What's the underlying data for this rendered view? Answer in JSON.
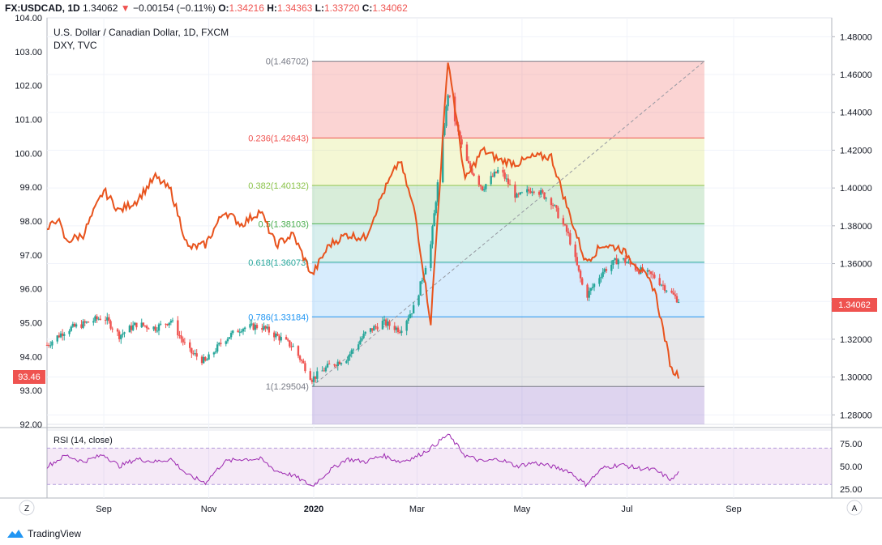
{
  "header": {
    "symbol": "FX:USDCAD, 1D",
    "last": "1.34062",
    "arrow": "▼",
    "change": "−0.00154 (−0.11%)",
    "o_label": "O:",
    "o": "1.34216",
    "h_label": "H:",
    "h": "1.34363",
    "l_label": "L:",
    "l": "1.33720",
    "c_label": "C:",
    "c": "1.34062"
  },
  "legend": {
    "main": "U.S. Dollar / Canadian Dollar, 1D, FXCM",
    "overlay": "DXY, TVC"
  },
  "price_badge": "1.34062",
  "dxy_badge": "93.46",
  "rsi_label": "RSI (14, close)",
  "axis_buttons": {
    "left": "Z",
    "right": "A"
  },
  "branding": "TradingView",
  "colors": {
    "candle_up": "#26a69a",
    "candle_down": "#ef5350",
    "dxy_line": "#e8531d",
    "rsi_line": "#9c27b0",
    "badge": "#ef5350"
  },
  "chart_data": [
    {
      "type": "candlestick",
      "name": "USDCAD",
      "y_axis": "right",
      "ylim": [
        1.275,
        1.49
      ],
      "y_ticks": [
        "1.48000",
        "1.46000",
        "1.44000",
        "1.42000",
        "1.40000",
        "1.38000",
        "1.36000",
        "1.34000",
        "1.32000",
        "1.30000",
        "1.28000"
      ],
      "x_ticks": [
        "Sep",
        "Nov",
        "2020",
        "Mar",
        "May",
        "Jul",
        "Sep"
      ],
      "x_range": [
        "2019-07-30",
        "2020-10-28"
      ],
      "series": [
        {
          "values_approx": [
            [
              "2019-07-30",
              1.317
            ],
            [
              "2019-08-10",
              1.325
            ],
            [
              "2019-08-20",
              1.328
            ],
            [
              "2019-09-01",
              1.332
            ],
            [
              "2019-09-10",
              1.322
            ],
            [
              "2019-09-20",
              1.328
            ],
            [
              "2019-10-01",
              1.326
            ],
            [
              "2019-10-10",
              1.33
            ],
            [
              "2019-10-20",
              1.314
            ],
            [
              "2019-10-30",
              1.308
            ],
            [
              "2019-11-10",
              1.32
            ],
            [
              "2019-11-20",
              1.326
            ],
            [
              "2019-12-01",
              1.327
            ],
            [
              "2019-12-10",
              1.322
            ],
            [
              "2019-12-20",
              1.316
            ],
            [
              "2019-12-31",
              1.299
            ],
            [
              "2020-01-10",
              1.306
            ],
            [
              "2020-01-20",
              1.31
            ],
            [
              "2020-01-31",
              1.323
            ],
            [
              "2020-02-10",
              1.329
            ],
            [
              "2020-02-20",
              1.325
            ],
            [
              "2020-02-29",
              1.338
            ],
            [
              "2020-03-09",
              1.37
            ],
            [
              "2020-03-19",
              1.45
            ],
            [
              "2020-03-29",
              1.415
            ],
            [
              "2020-04-08",
              1.4
            ],
            [
              "2020-04-18",
              1.41
            ],
            [
              "2020-04-28",
              1.395
            ],
            [
              "2020-05-08",
              1.4
            ],
            [
              "2020-05-18",
              1.393
            ],
            [
              "2020-05-28",
              1.375
            ],
            [
              "2020-06-07",
              1.342
            ],
            [
              "2020-06-17",
              1.356
            ],
            [
              "2020-06-27",
              1.363
            ],
            [
              "2020-07-07",
              1.357
            ],
            [
              "2020-07-17",
              1.353
            ],
            [
              "2020-07-27",
              1.344
            ],
            [
              "2020-07-31",
              1.3406
            ]
          ]
        }
      ]
    },
    {
      "type": "line",
      "name": "DXY",
      "y_axis": "left",
      "ylim": [
        92.0,
        104.0
      ],
      "y_ticks": [
        "104.00",
        "103.00",
        "102.00",
        "101.00",
        "100.00",
        "99.00",
        "98.00",
        "97.00",
        "96.00",
        "95.00",
        "94.00",
        "93.00",
        "92.00"
      ],
      "series": [
        {
          "values_approx": [
            [
              "2019-07-30",
              97.7
            ],
            [
              "2019-08-05",
              98.1
            ],
            [
              "2019-08-10",
              97.4
            ],
            [
              "2019-08-20",
              97.6
            ],
            [
              "2019-09-01",
              98.9
            ],
            [
              "2019-09-10",
              98.3
            ],
            [
              "2019-09-20",
              98.6
            ],
            [
              "2019-10-01",
              99.3
            ],
            [
              "2019-10-10",
              98.9
            ],
            [
              "2019-10-20",
              97.2
            ],
            [
              "2019-10-30",
              97.3
            ],
            [
              "2019-11-10",
              98.3
            ],
            [
              "2019-11-20",
              97.9
            ],
            [
              "2019-12-01",
              98.3
            ],
            [
              "2019-12-10",
              97.3
            ],
            [
              "2019-12-20",
              97.6
            ],
            [
              "2019-12-31",
              96.4
            ],
            [
              "2020-01-10",
              97.3
            ],
            [
              "2020-01-20",
              97.6
            ],
            [
              "2020-01-31",
              97.5
            ],
            [
              "2020-02-10",
              98.8
            ],
            [
              "2020-02-20",
              99.8
            ],
            [
              "2020-02-29",
              98.2
            ],
            [
              "2020-03-09",
              95.0
            ],
            [
              "2020-03-19",
              102.8
            ],
            [
              "2020-03-29",
              99.2
            ],
            [
              "2020-04-08",
              100.1
            ],
            [
              "2020-04-18",
              99.8
            ],
            [
              "2020-04-28",
              99.7
            ],
            [
              "2020-05-08",
              99.9
            ],
            [
              "2020-05-18",
              99.9
            ],
            [
              "2020-05-28",
              98.3
            ],
            [
              "2020-06-07",
              96.8
            ],
            [
              "2020-06-17",
              97.3
            ],
            [
              "2020-06-27",
              97.2
            ],
            [
              "2020-07-07",
              96.7
            ],
            [
              "2020-07-17",
              96.0
            ],
            [
              "2020-07-27",
              93.6
            ],
            [
              "2020-07-31",
              93.46
            ]
          ]
        }
      ]
    },
    {
      "type": "line",
      "name": "RSI (14, close)",
      "ylim": [
        15,
        90
      ],
      "bands": [
        30,
        70
      ],
      "y_ticks": [
        "75.00",
        "50.00",
        "25.00"
      ],
      "series": [
        {
          "values_approx": [
            [
              "2019-07-30",
              50
            ],
            [
              "2019-08-10",
              62
            ],
            [
              "2019-08-20",
              55
            ],
            [
              "2019-09-01",
              63
            ],
            [
              "2019-09-10",
              50
            ],
            [
              "2019-09-20",
              58
            ],
            [
              "2019-10-01",
              55
            ],
            [
              "2019-10-10",
              58
            ],
            [
              "2019-10-20",
              40
            ],
            [
              "2019-10-30",
              32
            ],
            [
              "2019-11-10",
              55
            ],
            [
              "2019-11-20",
              58
            ],
            [
              "2019-12-01",
              58
            ],
            [
              "2019-12-10",
              45
            ],
            [
              "2019-12-20",
              40
            ],
            [
              "2019-12-31",
              28
            ],
            [
              "2020-01-10",
              45
            ],
            [
              "2020-01-20",
              58
            ],
            [
              "2020-01-31",
              55
            ],
            [
              "2020-02-10",
              62
            ],
            [
              "2020-02-20",
              55
            ],
            [
              "2020-02-29",
              60
            ],
            [
              "2020-03-09",
              70
            ],
            [
              "2020-03-19",
              85
            ],
            [
              "2020-03-29",
              62
            ],
            [
              "2020-04-08",
              55
            ],
            [
              "2020-04-18",
              58
            ],
            [
              "2020-04-28",
              50
            ],
            [
              "2020-05-08",
              54
            ],
            [
              "2020-05-18",
              50
            ],
            [
              "2020-05-28",
              45
            ],
            [
              "2020-06-07",
              30
            ],
            [
              "2020-06-17",
              48
            ],
            [
              "2020-06-27",
              52
            ],
            [
              "2020-07-07",
              48
            ],
            [
              "2020-07-17",
              46
            ],
            [
              "2020-07-27",
              35
            ],
            [
              "2020-07-31",
              43
            ]
          ]
        }
      ]
    },
    {
      "type": "fibonacci",
      "name": "Fib retracement",
      "levels": [
        {
          "label": "0(1.46702)",
          "price": 1.46702,
          "color": "#787b86",
          "fill": "rgba(239,83,80,0.25)"
        },
        {
          "label": "0.236(1.42643)",
          "price": 1.42643,
          "color": "#ef5350",
          "fill": "rgba(205,220,57,0.22)"
        },
        {
          "label": "0.382(1.40132)",
          "price": 1.40132,
          "color": "#8bc34a",
          "fill": "rgba(76,175,80,0.22)"
        },
        {
          "label": "0.5(1.38103)",
          "price": 1.38103,
          "color": "#4caf50",
          "fill": "rgba(38,166,154,0.18)"
        },
        {
          "label": "0.618(1.36073)",
          "price": 1.36073,
          "color": "#26a69a",
          "fill": "rgba(33,150,243,0.18)"
        },
        {
          "label": "0.786(1.33184)",
          "price": 1.33184,
          "color": "#2196f3",
          "fill": "rgba(120,123,134,0.18)"
        },
        {
          "label": "1(1.29504)",
          "price": 1.29504,
          "color": "#787b86",
          "fill": "rgba(103,58,183,0.22)"
        }
      ],
      "start_date": "2019-12-31",
      "end_date": "2020-08-15"
    }
  ]
}
